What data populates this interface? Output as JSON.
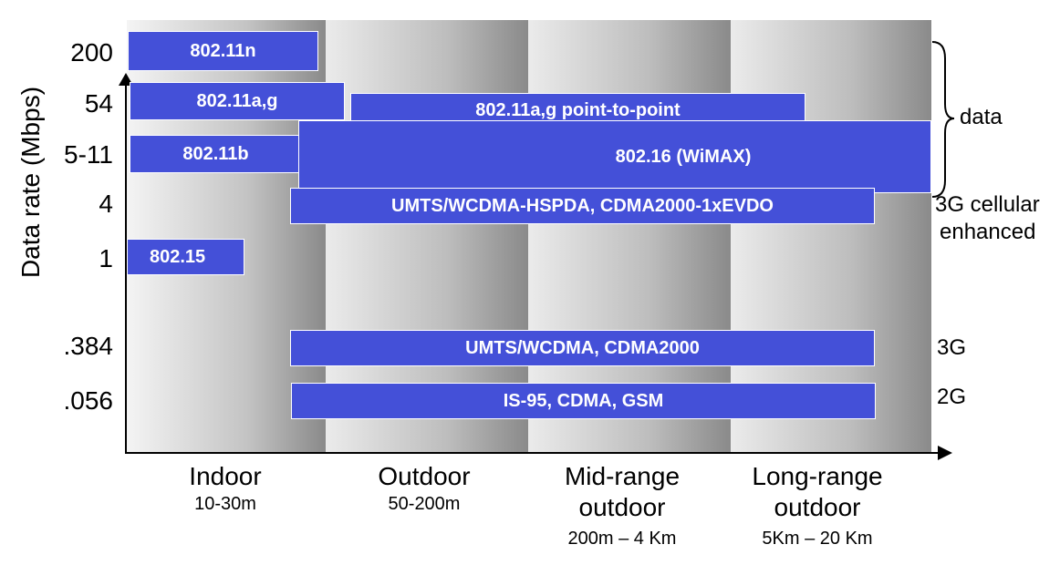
{
  "y_axis": {
    "title": "Data rate (Mbps)",
    "ticks": [
      "200",
      "54",
      "5-11",
      "4",
      "1",
      ".384",
      ".056"
    ]
  },
  "x_axis": {
    "categories": [
      {
        "name": "Indoor",
        "range": "10-30m"
      },
      {
        "name": "Outdoor",
        "range": "50-200m"
      },
      {
        "name": "Mid-range\noutdoor",
        "name_line1": "Mid-range",
        "name_line2": "outdoor",
        "range": "200m – 4 Km"
      },
      {
        "name_line1": "Long-range",
        "name_line2": "outdoor",
        "range": "5Km – 20 Km"
      }
    ]
  },
  "bars": {
    "n": "802.11n",
    "ag": "802.11a,g",
    "ag_ptp": "802.11a,g point-to-point",
    "b": "802.11b",
    "wimax": "802.16 (WiMAX)",
    "hspda": "UMTS/WCDMA-HSPDA, CDMA2000-1xEVDO",
    "p15": "802.15",
    "umts": "UMTS/WCDMA, CDMA2000",
    "is95": "IS-95, CDMA, GSM"
  },
  "right_labels": {
    "data": "data",
    "cell_line1": "3G cellular",
    "cell_line2": "enhanced",
    "g3": "3G",
    "g2": "2G"
  },
  "colors": {
    "bar": "#4450d8"
  }
}
